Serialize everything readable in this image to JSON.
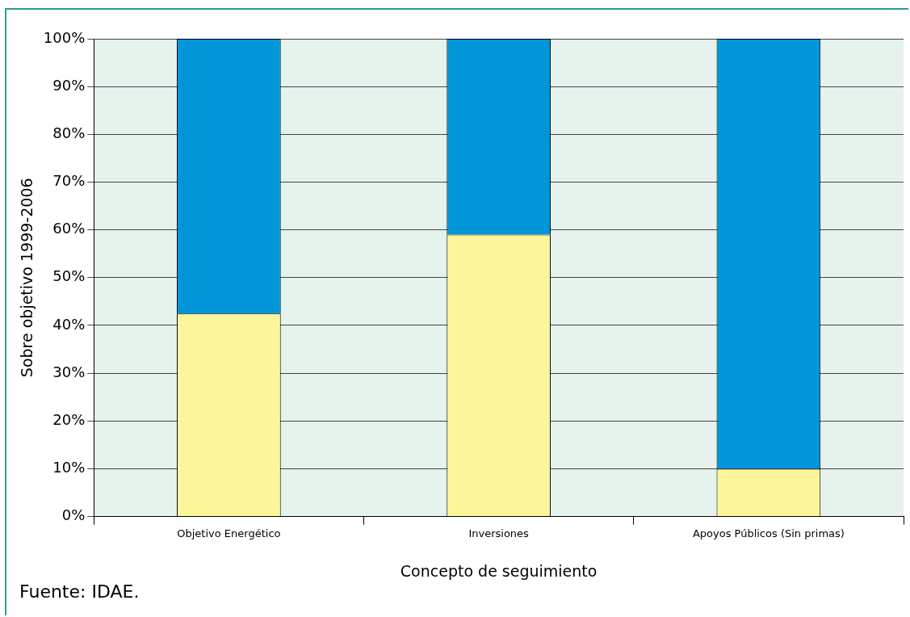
{
  "chart_data": {
    "type": "bar",
    "stacked": true,
    "xlabel": "Concepto de seguimiento",
    "ylabel": "Sobre objetivo 1999-2006",
    "categories": [
      "Objetivo Energético",
      "Inversiones",
      "Apoyos Públicos (Sin primas)"
    ],
    "series": [
      {
        "color": "#fdf59a",
        "values": [
          42.5,
          59,
          10
        ]
      },
      {
        "color": "#0096d9",
        "values": [
          57.5,
          41,
          90
        ]
      }
    ],
    "ylim": [
      0,
      100
    ],
    "yticks": [
      {
        "value": 0,
        "label": "0%"
      },
      {
        "value": 10,
        "label": "10%"
      },
      {
        "value": 20,
        "label": "20%"
      },
      {
        "value": 30,
        "label": "30%"
      },
      {
        "value": 40,
        "label": "40%"
      },
      {
        "value": 50,
        "label": "50%"
      },
      {
        "value": 60,
        "label": "60%"
      },
      {
        "value": 70,
        "label": "70%"
      },
      {
        "value": 80,
        "label": "80%"
      },
      {
        "value": 90,
        "label": "90%"
      },
      {
        "value": 100,
        "label": "100%"
      }
    ],
    "grid": "y",
    "legend": false,
    "annotations": [
      "Fuente: IDAE."
    ]
  }
}
